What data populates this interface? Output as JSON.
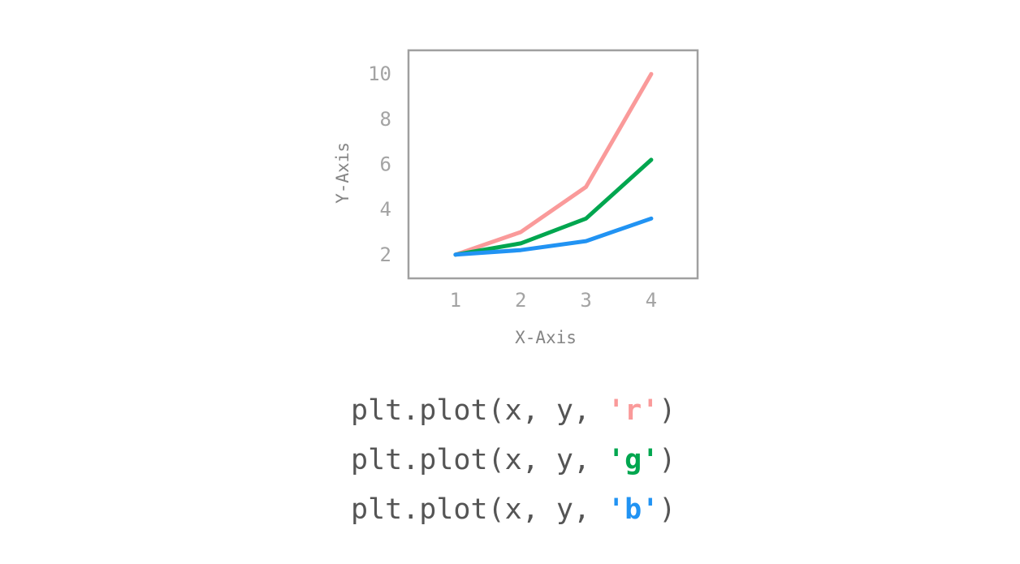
{
  "chart_data": {
    "type": "line",
    "x": [
      1,
      2,
      3,
      4
    ],
    "series": [
      {
        "values": [
          2,
          3,
          5,
          10
        ],
        "color": "#fa9a9a"
      },
      {
        "values": [
          2,
          2.5,
          3.6,
          6.2
        ],
        "color": "#00a64f"
      },
      {
        "values": [
          2,
          2.2,
          2.6,
          3.6
        ],
        "color": "#2193f3"
      }
    ],
    "xlabel": "X-Axis",
    "ylabel": "Y-Axis",
    "xticks": [
      "1",
      "2",
      "3",
      "4"
    ],
    "yticks": [
      "2",
      "4",
      "6",
      "8",
      "10"
    ],
    "xlim": [
      0.28,
      4.71
    ],
    "ylim": [
      0.95,
      11.05
    ],
    "grid": false
  },
  "code": {
    "lines": [
      {
        "prefix": "plt.plot(x, y, ",
        "arg": "'r'",
        "suffix": ")",
        "color": "#fa9a9a"
      },
      {
        "prefix": "plt.plot(x, y, ",
        "arg": "'g'",
        "suffix": ")",
        "color": "#00a64f"
      },
      {
        "prefix": "plt.plot(x, y, ",
        "arg": "'b'",
        "suffix": ")",
        "color": "#2193f3"
      }
    ]
  }
}
